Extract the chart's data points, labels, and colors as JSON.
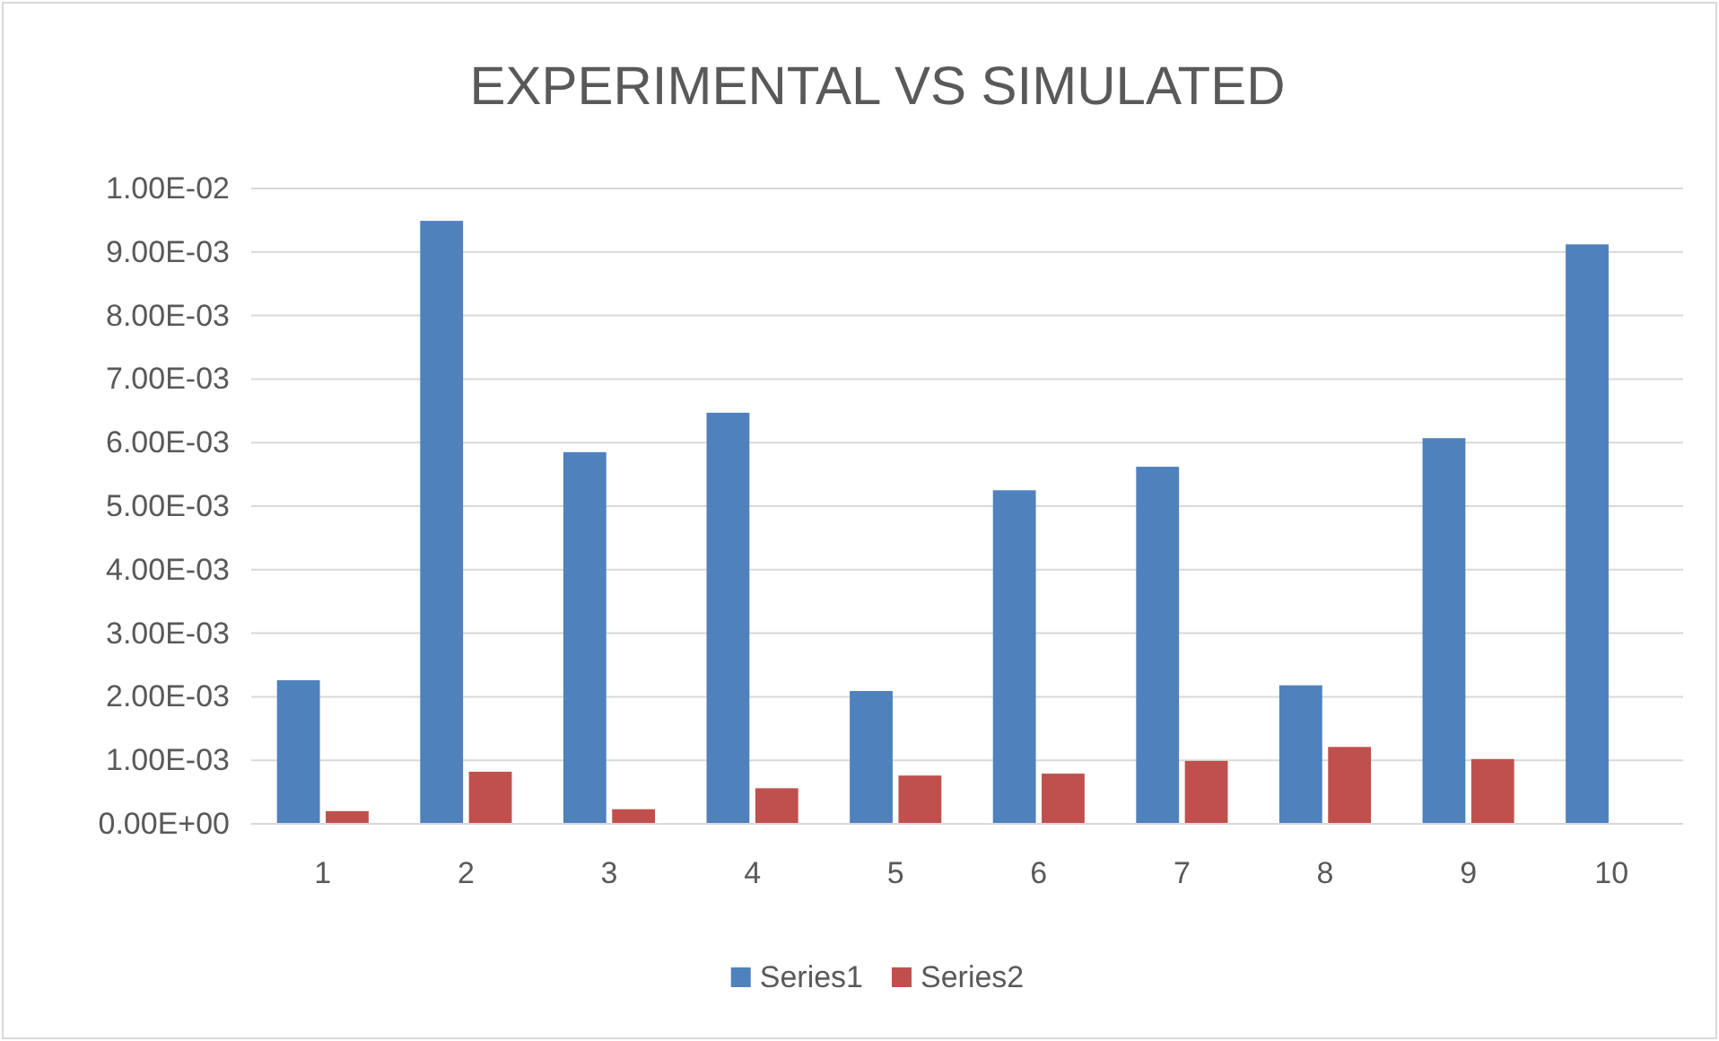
{
  "chart_data": {
    "type": "bar",
    "title": "EXPERIMENTAL VS SIMULATED",
    "categories": [
      "1",
      "2",
      "3",
      "4",
      "5",
      "6",
      "7",
      "8",
      "9",
      "10"
    ],
    "series": [
      {
        "name": "Series1",
        "color": "#4f81bd",
        "values": [
          0.00226,
          0.00949,
          0.00585,
          0.00647,
          0.00209,
          0.00525,
          0.00562,
          0.00218,
          0.00607,
          0.00912
        ]
      },
      {
        "name": "Series2",
        "color": "#c0504d",
        "values": [
          0.0002,
          0.00082,
          0.00023,
          0.00056,
          0.00076,
          0.00079,
          0.00099,
          0.00121,
          0.00102,
          null
        ]
      }
    ],
    "ylim": [
      0,
      0.01
    ],
    "yticks": [
      {
        "value": 0,
        "label": "0.00E+00"
      },
      {
        "value": 0.001,
        "label": "1.00E-03"
      },
      {
        "value": 0.002,
        "label": "2.00E-03"
      },
      {
        "value": 0.003,
        "label": "3.00E-03"
      },
      {
        "value": 0.004,
        "label": "4.00E-03"
      },
      {
        "value": 0.005,
        "label": "5.00E-03"
      },
      {
        "value": 0.006,
        "label": "6.00E-03"
      },
      {
        "value": 0.007,
        "label": "7.00E-03"
      },
      {
        "value": 0.008,
        "label": "8.00E-03"
      },
      {
        "value": 0.009,
        "label": "9.00E-03"
      },
      {
        "value": 0.01,
        "label": "1.00E-02"
      }
    ],
    "grid": "y",
    "legend": "bottom"
  }
}
